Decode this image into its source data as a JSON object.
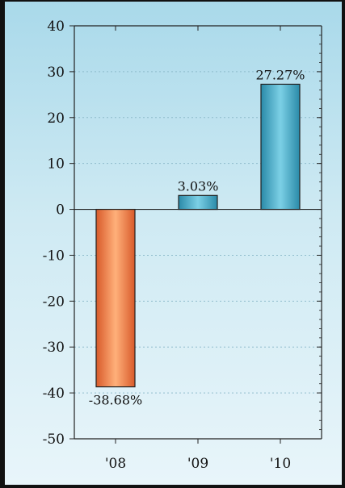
{
  "chart_data": {
    "type": "bar",
    "title": "",
    "xlabel": "",
    "ylabel": "",
    "categories": [
      "'08",
      "'09",
      "'10"
    ],
    "values": [
      -38.68,
      3.03,
      27.27
    ],
    "data_labels": [
      "-38.68%",
      "3.03%",
      "27.27%"
    ],
    "ylim": [
      -50,
      40
    ],
    "yticks": [
      40,
      30,
      20,
      10,
      0,
      -10,
      -20,
      -30,
      -40,
      -50
    ],
    "ytick_labels": [
      "40",
      "30",
      "20",
      "10",
      "0",
      "-10",
      "-20",
      "-30",
      "-40",
      "-50"
    ],
    "grid": true,
    "colors": {
      "negative": "#f08a55",
      "positive": "#45aac5",
      "background_top": "#a9d9ea",
      "background_bottom": "#e8f5fa"
    }
  }
}
